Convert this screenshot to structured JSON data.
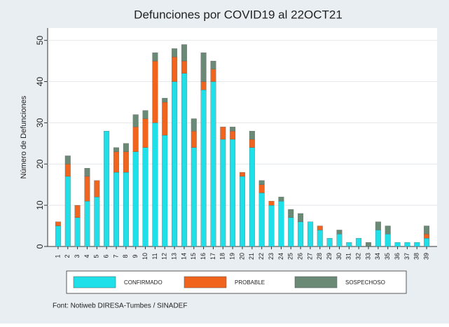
{
  "chart_data": {
    "type": "stacked_bar",
    "title": "Defunciones por COVID19 al 22OCT21",
    "y_label": "Número de Defunciones",
    "source": "Font: Notiweb DIRESA-Tumbes / SINADEF",
    "categories": [
      "1",
      "2",
      "3",
      "4",
      "5",
      "6",
      "7",
      "8",
      "9",
      "10",
      "11",
      "12",
      "13",
      "14",
      "15",
      "16",
      "17",
      "18",
      "19",
      "20",
      "21",
      "22",
      "23",
      "24",
      "25",
      "26",
      "27",
      "28",
      "29",
      "30",
      "31",
      "32",
      "33",
      "34",
      "35",
      "36",
      "37",
      "38",
      "39"
    ],
    "series": [
      {
        "name": "CONFIRMADO",
        "color": "#1fe0e8",
        "values": [
          5,
          17,
          7,
          11,
          12,
          28,
          18,
          18,
          23,
          24,
          30,
          27,
          40,
          42,
          24,
          38,
          40,
          26,
          26,
          17,
          24,
          13,
          10,
          11,
          7,
          6,
          6,
          4,
          2,
          3,
          1,
          2,
          0,
          4,
          3,
          1,
          1,
          1,
          2
        ]
      },
      {
        "name": "PROBABLE",
        "color": "#f0641e",
        "values": [
          1,
          3,
          3,
          6,
          4,
          0,
          5,
          5,
          6,
          7,
          15,
          8,
          6,
          3,
          4,
          2,
          3,
          3,
          2,
          1,
          2,
          2,
          1,
          0,
          0,
          0,
          0,
          1,
          0,
          0,
          0,
          0,
          0,
          0,
          0,
          0,
          0,
          0,
          1
        ]
      },
      {
        "name": "SOSPECHOSO",
        "color": "#6a8a76",
        "values": [
          0,
          2,
          0,
          2,
          0,
          0,
          1,
          2,
          3,
          2,
          2,
          1,
          2,
          4,
          3,
          7,
          2,
          0,
          1,
          0,
          2,
          1,
          0,
          1,
          2,
          2,
          0,
          0,
          0,
          1,
          0,
          0,
          1,
          2,
          2,
          0,
          0,
          0,
          2
        ]
      }
    ],
    "ylim": [
      0,
      53
    ],
    "yticks": [
      0,
      10,
      20,
      30,
      40,
      50
    ],
    "grid": true,
    "legend": "bottom"
  }
}
